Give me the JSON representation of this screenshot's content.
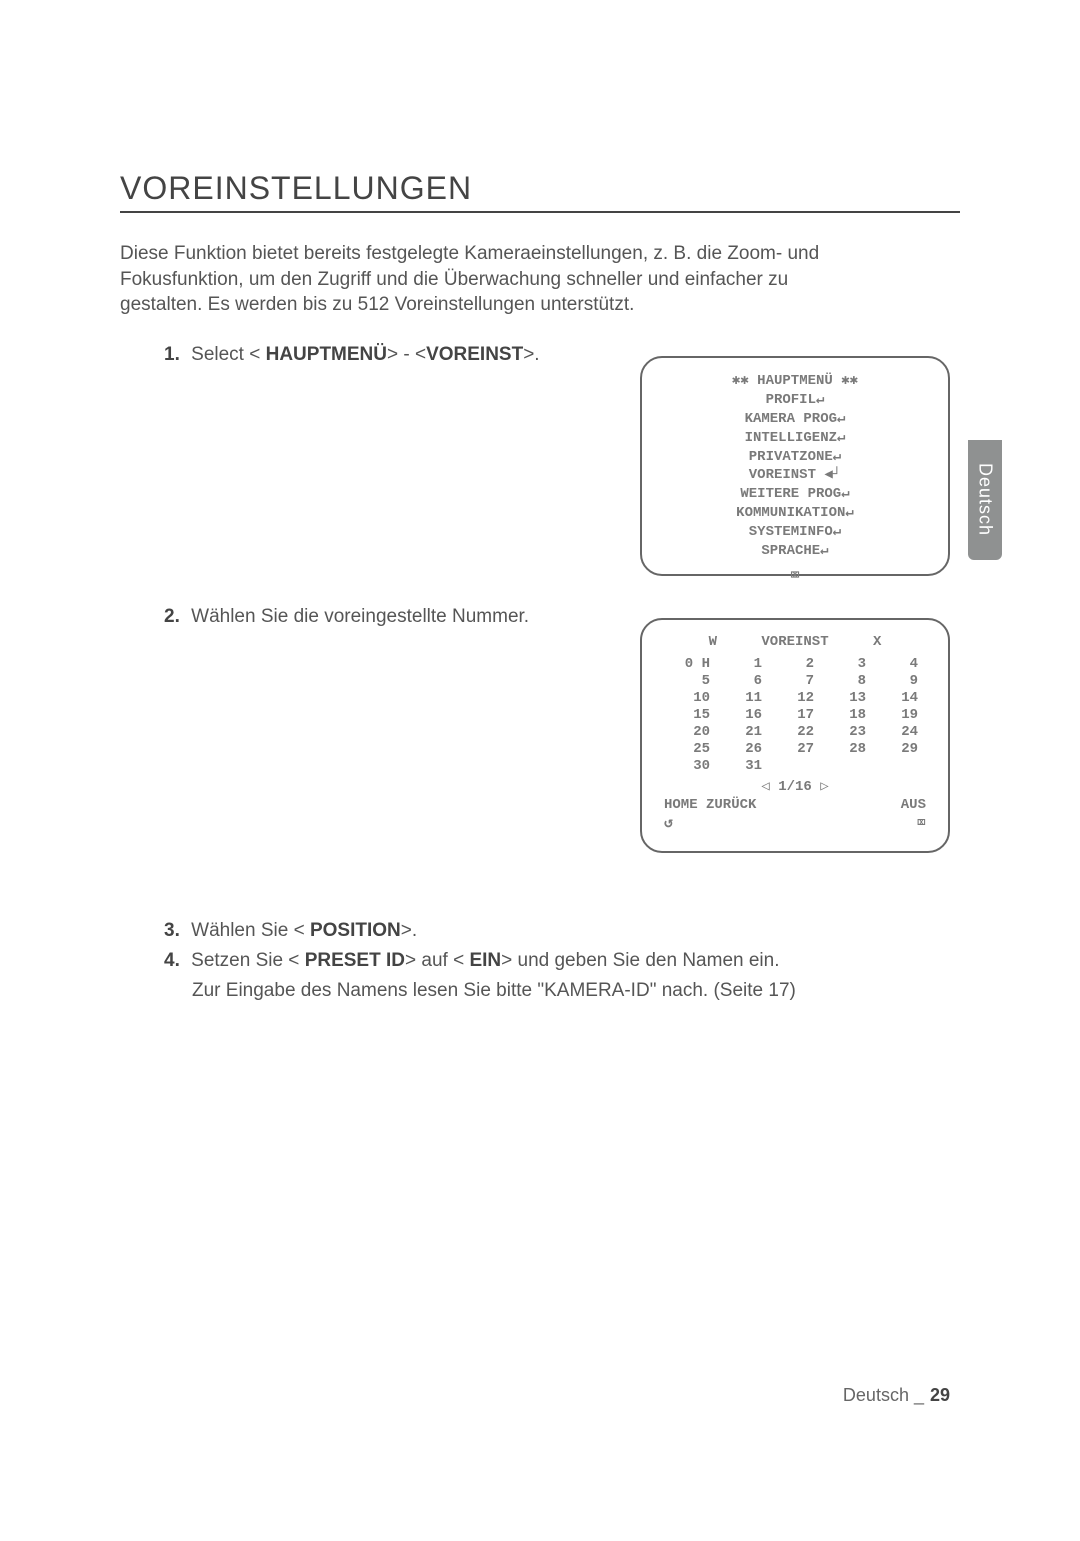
{
  "title": "VOREINSTELLUNGEN",
  "intro": "Diese Funktion bietet bereits festgelegte Kameraeinstellungen, z. B. die Zoom- und Fokusfunktion, um den Zugriff und die Überwachung schneller und einfacher zu gestalten. Es werden bis zu 512 Voreinstellungen unterstützt.",
  "side_tab": "Deutsch",
  "steps": {
    "s1_num": "1.",
    "s1_pre": "Select < ",
    "s1_b1": "HAUPTMENÜ",
    "s1_mid": "> - <",
    "s1_b2": "VOREINST",
    "s1_post": ">.",
    "s2_num": "2.",
    "s2_text": "Wählen Sie die voreingestellte Nummer.",
    "s3_num": "3.",
    "s3_pre": "Wählen Sie < ",
    "s3_b1": " POSITION",
    "s3_post": ">.",
    "s4_num": "4.",
    "s4_pre": "Setzen Sie < ",
    "s4_b1": " PRESET ID",
    "s4_mid1": "> auf < ",
    "s4_b2": "EIN",
    "s4_post": "> und geben Sie den Namen ein.",
    "s4_sub_pre": "Zur Eingabe des Namens lesen Sie bitte \"",
    "s4_sub_b": "KAMERA-ID",
    "s4_sub_post": "\" nach. (Seite 17)"
  },
  "osd1": {
    "lines": [
      "✱✱ HAUPTMENÜ ✱✱",
      "PROFIL↵",
      "KAMERA PROG↵",
      "INTELLIGENZ↵",
      "PRIVATZONE↵",
      "VOREINST  ◀┘",
      "WEITERE PROG↵",
      "KOMMUNIKATION↵",
      "SYSTEMINFO↵",
      "SPRACHE↵"
    ],
    "exit": "⌧"
  },
  "osd2": {
    "header_w": "W",
    "header_title": "VOREINST",
    "header_x": "X",
    "grid": [
      [
        "0 H",
        "1",
        "2",
        "3",
        "4"
      ],
      [
        "5",
        "6",
        "7",
        "8",
        "9"
      ],
      [
        "10",
        "11",
        "12",
        "13",
        "14"
      ],
      [
        "15",
        "16",
        "17",
        "18",
        "19"
      ],
      [
        "20",
        "21",
        "22",
        "23",
        "24"
      ],
      [
        "25",
        "26",
        "27",
        "28",
        "29"
      ],
      [
        "30",
        "31",
        "",
        "",
        ""
      ]
    ],
    "pager": "◁ 1/16 ▷",
    "home_label": "HOME ZURÜCK",
    "home_value": "AUS",
    "back_icon": "↺",
    "exit_icon": "⌧"
  },
  "footer": {
    "label": "Deutsch _",
    "page": "29"
  }
}
